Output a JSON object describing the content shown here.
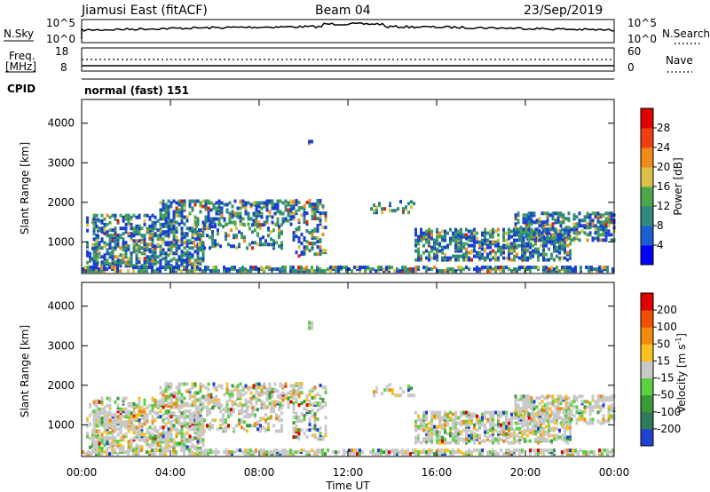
{
  "header": {
    "station": "Jiamusi East (fitACF)",
    "beam": "Beam 04",
    "date": "23/Sep/2019"
  },
  "strip_nsky": {
    "left_label": "N.Sky",
    "right_label": "N.Search",
    "left_ticks": [
      "10^5",
      "10^0"
    ],
    "right_ticks": [
      "10^5",
      "10^0"
    ]
  },
  "strip_freq": {
    "left_label_1": "Freq.",
    "left_label_2": "[MHz]",
    "right_label": "Nave",
    "left_ticks": [
      "18",
      "8"
    ],
    "right_ticks": [
      "60",
      "0"
    ]
  },
  "cpid": {
    "label": "CPID",
    "text": "normal (fast) 151"
  },
  "chart_data": [
    {
      "type": "heatmap",
      "name": "power",
      "ylabel": "Slant Range [km]",
      "ylim": [
        200,
        4600
      ],
      "yticks": [
        "1000",
        "2000",
        "3000",
        "4000"
      ],
      "yticks_values": [
        1000,
        2000,
        3000,
        4000
      ],
      "colorbar": {
        "label": "Power [dB]",
        "ticks": [
          "4",
          "8",
          "12",
          "16",
          "20",
          "24",
          "28"
        ],
        "colors": [
          "#0000ff",
          "#1a5fd0",
          "#2f8a7d",
          "#4ca64c",
          "#d8c04a",
          "#f08a1c",
          "#f04010",
          "#e00000"
        ]
      }
    },
    {
      "type": "heatmap",
      "name": "velocity",
      "ylabel": "Slant Range [km]",
      "ylim": [
        200,
        4600
      ],
      "yticks": [
        "1000",
        "2000",
        "3000",
        "4000"
      ],
      "yticks_values": [
        1000,
        2000,
        3000,
        4000
      ],
      "xlabel": "Time UT",
      "xticks": [
        "00:00",
        "04:00",
        "08:00",
        "12:00",
        "16:00",
        "20:00",
        "00:00"
      ],
      "colorbar": {
        "label": "Velocity [m s",
        "label_exp": "-1",
        "label_close": "]",
        "ticks": [
          "200",
          "100",
          "50",
          "15",
          "-15",
          "-50",
          "-100",
          "-200"
        ],
        "colors": [
          "#2040d0",
          "#2f7a5a",
          "#3a9a3a",
          "#5cd040",
          "#c8c8c8",
          "#f8c020",
          "#f08a10",
          "#f05000",
          "#e00000"
        ]
      }
    }
  ]
}
